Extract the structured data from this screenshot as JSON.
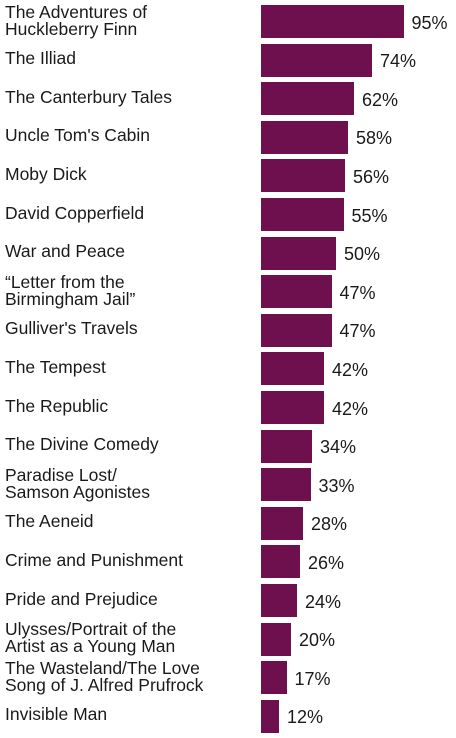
{
  "chart_data": {
    "type": "bar",
    "orientation": "horizontal",
    "categories": [
      "The Adventures of\nHuckleberry Finn",
      "The Illiad",
      "The Canterbury Tales",
      "Uncle Tom's Cabin",
      "Moby Dick",
      "David Copperfield",
      "War and Peace",
      "“Letter from the\nBirmingham Jail”",
      "Gulliver's Travels",
      "The Tempest",
      "The Republic",
      "The Divine Comedy",
      "Paradise Lost/\nSamson Agonistes",
      "The Aeneid",
      "Crime and Punishment",
      "Pride and Prejudice",
      "Ulysses/Portrait of the\nArtist as a Young Man",
      "The Wasteland/The Love\nSong of J. Alfred Prufrock",
      "Invisible Man"
    ],
    "values": [
      95,
      74,
      62,
      58,
      56,
      55,
      50,
      47,
      47,
      42,
      42,
      34,
      33,
      28,
      26,
      24,
      20,
      17,
      12
    ],
    "value_labels": [
      "95%",
      "74%",
      "62%",
      "58%",
      "56%",
      "55%",
      "50%",
      "47%",
      "47%",
      "42%",
      "42%",
      "34%",
      "33%",
      "28%",
      "26%",
      "24%",
      "20%",
      "17%",
      "12%"
    ],
    "xlim": [
      0,
      100
    ],
    "grid": false,
    "legend": "none",
    "colors": {
      "bar": "#6e0f4e",
      "text": "#1a1a1a",
      "background": "#ffffff"
    }
  }
}
